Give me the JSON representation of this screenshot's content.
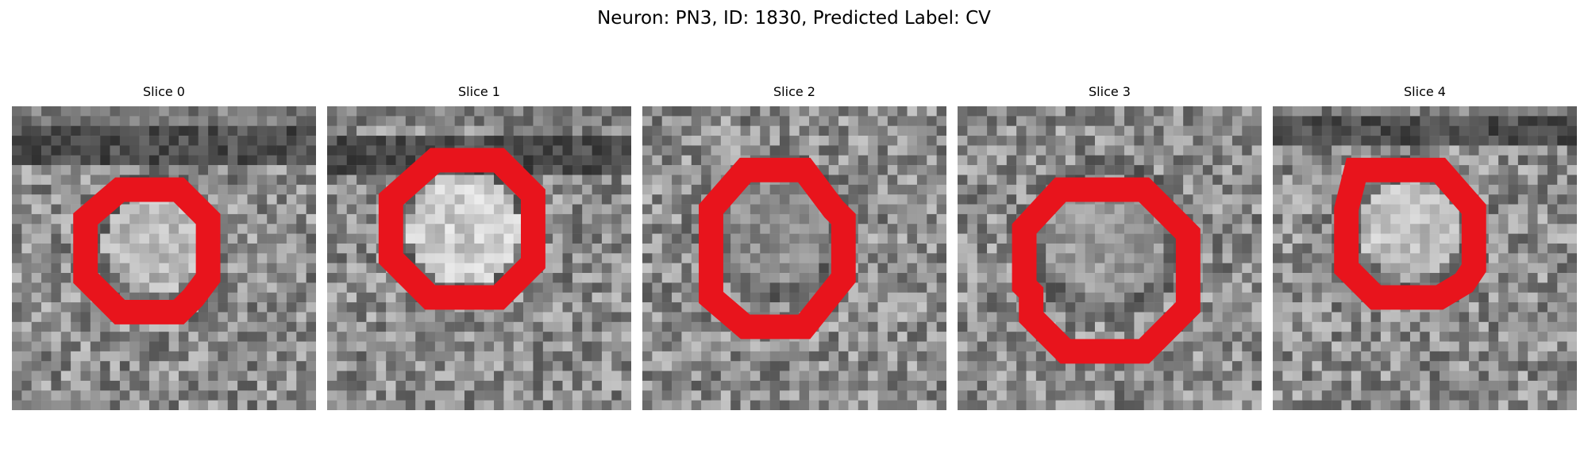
{
  "figure": {
    "title": "Neuron: PN3, ID: 1830, Predicted Label: CV"
  },
  "colors": {
    "contour": "#e8141c",
    "background": "#ffffff"
  },
  "panels": [
    {
      "title": "Slice 0"
    },
    {
      "title": "Slice 1"
    },
    {
      "title": "Slice 2"
    },
    {
      "title": "Slice 3"
    },
    {
      "title": "Slice 4"
    }
  ]
}
